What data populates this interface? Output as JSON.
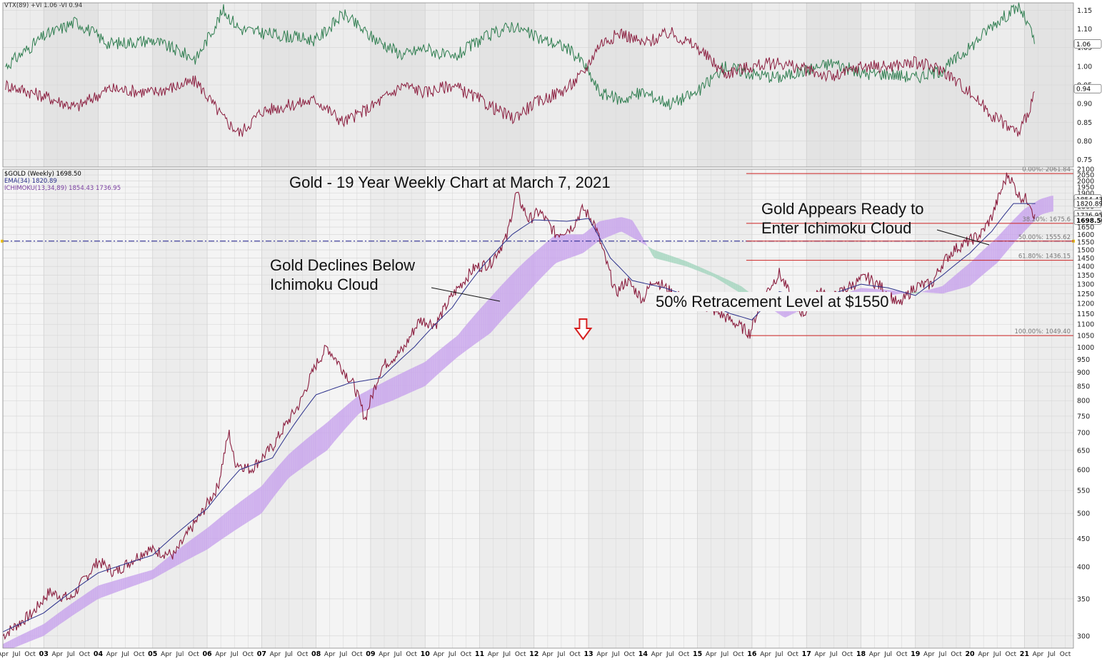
{
  "chart_data": [
    {
      "type": "line",
      "panel": "indicator",
      "legend": "VTX(89) +VI 1.06 -VI 0.94",
      "series": [
        {
          "name": "+VI",
          "color": "#2e7d4f",
          "x": [
            2002.3,
            2003.0,
            2003.6,
            2004.2,
            2005.0,
            2005.8,
            2006.3,
            2006.6,
            2007.0,
            2008.0,
            2008.5,
            2009.0,
            2009.6,
            2010.0,
            2010.5,
            2011.0,
            2011.6,
            2012.0,
            2012.6,
            2012.9,
            2013.2,
            2013.6,
            2014.0,
            2014.5,
            2015.0,
            2015.5,
            2016.0,
            2016.5,
            2017.0,
            2017.5,
            2018.0,
            2018.5,
            2019.0,
            2019.5,
            2020.0,
            2020.4,
            2020.6,
            2020.9,
            2021.1,
            2021.2
          ],
          "values": [
            1.0,
            1.08,
            1.12,
            1.06,
            1.07,
            1.02,
            1.15,
            1.1,
            1.09,
            1.07,
            1.14,
            1.08,
            1.03,
            1.05,
            1.02,
            1.07,
            1.11,
            1.08,
            1.05,
            1.01,
            0.93,
            0.91,
            0.93,
            0.9,
            0.93,
            1.0,
            0.98,
            0.97,
            0.99,
            1.01,
            0.98,
            0.98,
            0.97,
            0.99,
            1.05,
            1.11,
            1.13,
            1.16,
            1.1,
            1.06
          ]
        },
        {
          "name": "-VI",
          "color": "#8b1e3f",
          "x": [
            2002.3,
            2003.0,
            2003.6,
            2004.2,
            2005.0,
            2005.8,
            2006.3,
            2006.6,
            2007.0,
            2008.0,
            2008.5,
            2009.0,
            2009.6,
            2010.0,
            2010.5,
            2011.0,
            2011.6,
            2012.0,
            2012.6,
            2012.9,
            2013.2,
            2013.6,
            2014.0,
            2014.5,
            2015.0,
            2015.5,
            2016.0,
            2016.5,
            2017.0,
            2017.5,
            2018.0,
            2018.5,
            2019.0,
            2019.5,
            2020.0,
            2020.4,
            2020.6,
            2020.9,
            2021.1,
            2021.2
          ],
          "values": [
            0.95,
            0.92,
            0.89,
            0.94,
            0.93,
            0.96,
            0.86,
            0.82,
            0.88,
            0.91,
            0.85,
            0.89,
            0.95,
            0.93,
            0.95,
            0.91,
            0.86,
            0.9,
            0.94,
            0.98,
            1.06,
            1.09,
            1.06,
            1.09,
            1.05,
            0.98,
            1.0,
            1.01,
            0.99,
            0.97,
            1.0,
            1.0,
            1.01,
            0.99,
            0.93,
            0.87,
            0.85,
            0.82,
            0.89,
            0.94
          ]
        }
      ],
      "ylim": [
        0.73,
        1.17
      ],
      "yticks": [
        0.75,
        0.8,
        0.85,
        0.9,
        0.95,
        1.0,
        1.05,
        1.1,
        1.15
      ],
      "value_labels": [
        {
          "text": "1.06",
          "value": 1.06
        },
        {
          "text": "0.94",
          "value": 0.94
        }
      ]
    },
    {
      "type": "line",
      "panel": "price",
      "scale": "log",
      "title": "Gold - 19 Year Weekly Chart at March 7, 2021",
      "legend": [
        {
          "text": "$GOLD (Weekly) 1698.50",
          "color": "#000000"
        },
        {
          "text": "EMA(34) 1820.89",
          "color": "#2a2f8a"
        },
        {
          "text": "ICHIMOKU(13,34,89) 1854.43 1736.95",
          "color": "#7a3ea0"
        }
      ],
      "ylim": [
        285,
        2100
      ],
      "yticks": [
        300,
        350,
        400,
        450,
        500,
        550,
        600,
        650,
        700,
        750,
        800,
        850,
        900,
        950,
        1000,
        1050,
        1100,
        1150,
        1200,
        1250,
        1300,
        1350,
        1400,
        1450,
        1500,
        1550,
        1600,
        1650,
        1700,
        1750,
        1800,
        1850,
        1900,
        1950,
        2000,
        2050,
        2100
      ],
      "xlim": [
        2002.25,
        2021.9
      ],
      "x_year_ticks": [
        "03",
        "04",
        "05",
        "06",
        "07",
        "08",
        "09",
        "10",
        "11",
        "12",
        "13",
        "14",
        "15",
        "16",
        "17",
        "18",
        "19",
        "20",
        "21"
      ],
      "x_minor_labels": [
        "Apr",
        "Jul",
        "Oct"
      ],
      "series": [
        {
          "name": "$GOLD (Weekly)",
          "color": "#8b1e3f",
          "x": [
            2002.25,
            2002.8,
            2003.1,
            2003.5,
            2004.0,
            2004.3,
            2004.9,
            2005.4,
            2005.9,
            2006.2,
            2006.4,
            2006.5,
            2006.8,
            2007.2,
            2007.7,
            2008.0,
            2008.2,
            2008.7,
            2008.9,
            2009.2,
            2009.6,
            2009.9,
            2010.2,
            2010.5,
            2010.9,
            2011.2,
            2011.5,
            2011.67,
            2011.9,
            2012.1,
            2012.4,
            2012.7,
            2012.9,
            2013.1,
            2013.3,
            2013.5,
            2013.7,
            2014.0,
            2014.2,
            2014.5,
            2014.9,
            2015.2,
            2015.6,
            2015.96,
            2016.2,
            2016.5,
            2016.8,
            2016.96,
            2017.2,
            2017.5,
            2017.8,
            2018.1,
            2018.4,
            2018.7,
            2019.0,
            2019.3,
            2019.5,
            2019.7,
            2020.0,
            2020.2,
            2020.4,
            2020.6,
            2020.7,
            2020.9,
            2021.1,
            2021.2
          ],
          "values": [
            300,
            330,
            360,
            350,
            410,
            390,
            430,
            420,
            500,
            560,
            700,
            620,
            600,
            660,
            790,
            930,
            1000,
            850,
            740,
            920,
            990,
            1120,
            1100,
            1240,
            1390,
            1420,
            1580,
            1900,
            1700,
            1760,
            1600,
            1650,
            1780,
            1680,
            1450,
            1250,
            1320,
            1220,
            1330,
            1260,
            1200,
            1180,
            1120,
            1060,
            1230,
            1360,
            1180,
            1150,
            1260,
            1230,
            1290,
            1340,
            1280,
            1190,
            1290,
            1300,
            1420,
            1500,
            1560,
            1600,
            1720,
            1950,
            2060,
            1880,
            1840,
            1698
          ]
        },
        {
          "name": "EMA(34)",
          "color": "#2a2f8a",
          "x": [
            2002.25,
            2003.0,
            2004.0,
            2005.0,
            2006.0,
            2006.6,
            2007.2,
            2008.0,
            2008.6,
            2009.2,
            2009.8,
            2010.5,
            2011.0,
            2011.6,
            2012.0,
            2012.6,
            2013.0,
            2013.4,
            2013.8,
            2014.4,
            2015.0,
            2015.6,
            2016.0,
            2016.5,
            2017.0,
            2017.5,
            2018.0,
            2018.5,
            2019.0,
            2019.5,
            2020.0,
            2020.4,
            2020.8,
            2021.2
          ],
          "values": [
            305,
            330,
            390,
            420,
            510,
            600,
            630,
            820,
            860,
            880,
            1000,
            1180,
            1380,
            1600,
            1700,
            1690,
            1710,
            1450,
            1320,
            1280,
            1220,
            1150,
            1120,
            1260,
            1230,
            1250,
            1300,
            1280,
            1240,
            1350,
            1480,
            1620,
            1820,
            1820
          ]
        },
        {
          "name": "Ichimoku span A",
          "color": "#b48ad8",
          "x": [
            2002.25,
            2003.0,
            2004.0,
            2005.0,
            2006.0,
            2007.0,
            2007.5,
            2008.2,
            2008.8,
            2009.4,
            2010.0,
            2010.6,
            2011.2,
            2011.8,
            2012.4,
            2012.9,
            2013.2,
            2013.6,
            2013.8,
            2014.2,
            2014.8,
            2015.3,
            2015.8,
            2016.2,
            2016.6,
            2017.0,
            2017.5,
            2018.0,
            2018.5,
            2019.0,
            2019.5,
            2020.0,
            2020.5,
            2021.0,
            2021.3,
            2021.5
          ],
          "values": [
            290,
            315,
            370,
            395,
            470,
            560,
            640,
            730,
            820,
            880,
            940,
            1050,
            1230,
            1420,
            1600,
            1600,
            1690,
            1720,
            1700,
            1450,
            1400,
            1340,
            1250,
            1220,
            1230,
            1200,
            1230,
            1280,
            1270,
            1250,
            1290,
            1420,
            1580,
            1780,
            1855,
            1880
          ]
        },
        {
          "name": "Ichimoku span B",
          "color": "#8fc7a8",
          "x": [
            2002.25,
            2003.0,
            2004.0,
            2005.0,
            2006.0,
            2007.0,
            2007.5,
            2008.2,
            2008.8,
            2009.4,
            2010.0,
            2010.6,
            2011.2,
            2011.8,
            2012.4,
            2012.9,
            2013.2,
            2013.6,
            2013.8,
            2014.2,
            2014.8,
            2015.3,
            2015.8,
            2016.2,
            2016.6,
            2017.0,
            2017.5,
            2018.0,
            2018.5,
            2019.0,
            2019.5,
            2020.0,
            2020.5,
            2021.0,
            2021.3,
            2021.5
          ],
          "values": [
            280,
            300,
            350,
            380,
            430,
            500,
            580,
            650,
            760,
            800,
            850,
            960,
            1060,
            1230,
            1420,
            1480,
            1560,
            1620,
            1580,
            1500,
            1430,
            1360,
            1290,
            1200,
            1130,
            1180,
            1200,
            1230,
            1240,
            1260,
            1250,
            1290,
            1420,
            1620,
            1737,
            1760
          ]
        }
      ],
      "fibonacci": [
        {
          "label": "0.00%: 2061.84",
          "value": 2061.84
        },
        {
          "label": "38.20%: 1675.6",
          "value": 1675.6
        },
        {
          "label": "50.00%: 1555.62",
          "value": 1555.62
        },
        {
          "label": "61.80%: 1436.15",
          "value": 1436.15
        },
        {
          "label": "100.00%: 1049.40",
          "value": 1049.4
        }
      ],
      "fib_start_x": 2016.0,
      "horizontal_line": {
        "value": 1555.62,
        "color": "#1a1a8c"
      },
      "value_labels": [
        {
          "text": "1854.43",
          "value": 1854.43
        },
        {
          "text": "1820.89",
          "value": 1820.89
        },
        {
          "text": "1736.95",
          "value": 1736.95
        },
        {
          "text": "1698.50",
          "value": 1698.5
        }
      ],
      "annotations": [
        {
          "text": "Gold Declines Below Ichimoku Cloud"
        },
        {
          "text": "Gold Appears Ready to Enter Ichimoku Cloud"
        },
        {
          "text": "50% Retracement Level at $1550"
        }
      ],
      "down_arrow_x": 2012.9
    }
  ],
  "annotations": {
    "title": "Gold - 19 Year Weekly Chart at March 7, 2021",
    "declines_line1": "Gold Declines Below",
    "declines_line2": "Ichimoku Cloud",
    "ready_line1": "Gold Appears Ready to",
    "ready_line2": "Enter Ichimoku Cloud",
    "retracement": "50% Retracement Level at $1550"
  },
  "legend_text": {
    "vtx": "VTX(89) +VI 1.06 -VI 0.94",
    "gold": "$GOLD (Weekly) 1698.50",
    "ema": "EMA(34) 1820.89",
    "ichimoku": "ICHIMOKU(13,34,89) 1854.43 1736.95"
  },
  "colors": {
    "vi_plus": "#2e7d4f",
    "vi_minus": "#8b1e3f",
    "ema": "#2a2f8a",
    "cloud_bull": "#c9a6ec",
    "cloud_bear": "#a6d6c0",
    "fib": "#cc2222",
    "arrow": "#d62020"
  }
}
